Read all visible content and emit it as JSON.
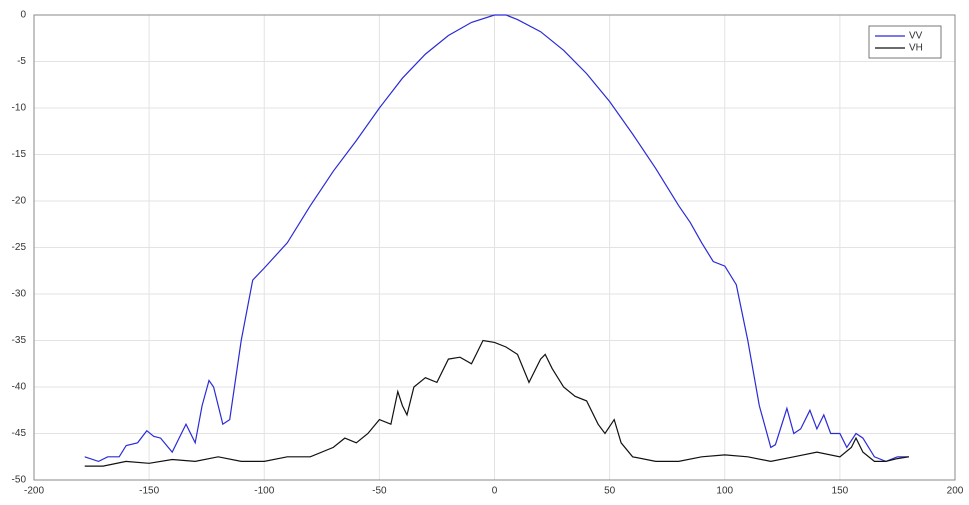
{
  "chart_data": {
    "type": "line",
    "xlim": [
      -200,
      200
    ],
    "ylim": [
      -50,
      0
    ],
    "xticks": [
      -200,
      -150,
      -100,
      -50,
      0,
      50,
      100,
      150,
      200
    ],
    "yticks": [
      -50,
      -45,
      -40,
      -35,
      -30,
      -25,
      -20,
      -15,
      -10,
      -5,
      0
    ],
    "grid": true,
    "legend": "top-right",
    "series": [
      {
        "name": "VV",
        "color": "#2b2bd6",
        "x": [
          -178,
          -172,
          -168,
          -163,
          -160,
          -155,
          -151,
          -148,
          -145,
          -140,
          -137,
          -134,
          -130,
          -127,
          -124,
          -122,
          -118,
          -115,
          -110,
          -105,
          -100,
          -90,
          -80,
          -70,
          -60,
          -50,
          -40,
          -30,
          -20,
          -10,
          0,
          5,
          10,
          20,
          30,
          40,
          50,
          60,
          70,
          80,
          85,
          90,
          95,
          100,
          105,
          110,
          115,
          120,
          122,
          127,
          130,
          133,
          137,
          140,
          143,
          146,
          150,
          153,
          157,
          160,
          165,
          170,
          175,
          180
        ],
        "values": [
          -47.5,
          -48,
          -47.5,
          -47.5,
          -46.3,
          -46,
          -44.7,
          -45.3,
          -45.5,
          -47,
          -45.5,
          -44,
          -46,
          -42,
          -39.3,
          -40,
          -44,
          -43.5,
          -35,
          -28.5,
          -27.2,
          -24.5,
          -20.5,
          -16.8,
          -13.5,
          -10,
          -6.8,
          -4.2,
          -2.2,
          -0.8,
          0,
          0,
          -0.5,
          -1.8,
          -3.8,
          -6.3,
          -9.3,
          -12.8,
          -16.5,
          -20.5,
          -22.3,
          -24.5,
          -26.5,
          -27,
          -29,
          -35,
          -42,
          -46.5,
          -46.2,
          -42.3,
          -45,
          -44.5,
          -42.5,
          -44.5,
          -43,
          -45,
          -45,
          -46.5,
          -45,
          -45.5,
          -47.5,
          -48,
          -47.5,
          -47.5
        ]
      },
      {
        "name": "VH",
        "color": "#111111",
        "x": [
          -178,
          -170,
          -160,
          -150,
          -140,
          -130,
          -120,
          -110,
          -100,
          -90,
          -80,
          -70,
          -65,
          -60,
          -55,
          -50,
          -45,
          -42,
          -40,
          -38,
          -35,
          -30,
          -25,
          -20,
          -15,
          -10,
          -5,
          0,
          5,
          10,
          15,
          20,
          22,
          25,
          30,
          35,
          40,
          45,
          48,
          52,
          55,
          60,
          70,
          80,
          90,
          100,
          110,
          120,
          130,
          140,
          150,
          155,
          157,
          160,
          165,
          170,
          175,
          180
        ],
        "values": [
          -48.5,
          -48.5,
          -48,
          -48.2,
          -47.8,
          -48,
          -47.5,
          -48,
          -48,
          -47.5,
          -47.5,
          -46.5,
          -45.5,
          -46,
          -45,
          -43.5,
          -44,
          -40.5,
          -42,
          -43,
          -40,
          -39,
          -39.5,
          -37,
          -36.8,
          -37.5,
          -35,
          -35.2,
          -35.7,
          -36.5,
          -39.5,
          -37,
          -36.5,
          -38,
          -40,
          -41,
          -41.5,
          -44,
          -45,
          -43.5,
          -46,
          -47.5,
          -48,
          -48,
          -47.5,
          -47.3,
          -47.5,
          -48,
          -47.5,
          -47,
          -47.5,
          -46.5,
          -45.5,
          -47,
          -48,
          -48,
          -47.7,
          -47.5
        ]
      }
    ]
  }
}
